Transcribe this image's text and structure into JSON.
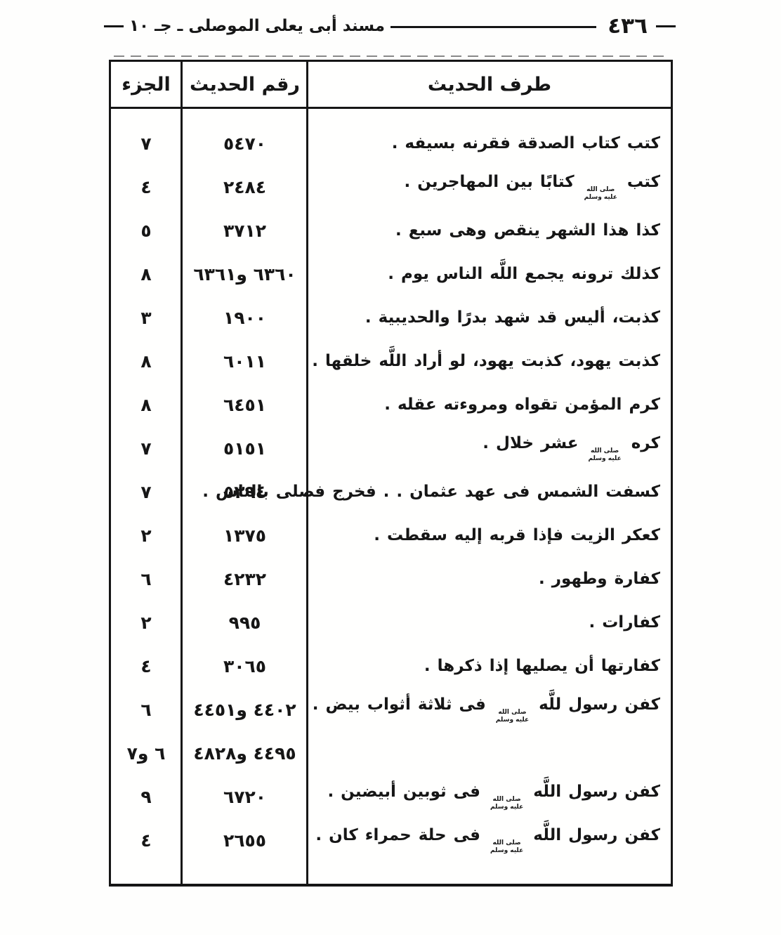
{
  "page_header": {
    "book_title": "مسند أبى يعلى الموصلى ـ جـ ١٠",
    "page_number": "٤٣٦"
  },
  "table": {
    "columns": {
      "text": "طرف الحديث",
      "number": "رقم الحديث",
      "part": "الجزء"
    },
    "rows": [
      {
        "text": "كتب كتاب الصدقة فقرنه بسيفه .",
        "number": "٥٤٧٠",
        "part": "٧"
      },
      {
        "text": "كتب ﷺ كتابًا بين المهاجرين .",
        "number": "٢٤٨٤",
        "part": "٤"
      },
      {
        "text": "كذا هذا الشهر ينقص وهى سبع .",
        "number": "٣٧١٢",
        "part": "٥"
      },
      {
        "text": "كذلك ترونه يجمع اللَّه الناس يوم .",
        "number": "٦٣٦٠ و٦٣٦١",
        "part": "٨"
      },
      {
        "text": "كذبت، أليس قد شهد بدرًا والحديبية .",
        "number": "١٩٠٠",
        "part": "٣"
      },
      {
        "text": "كذبت يهود، كذبت يهود، لو أراد اللَّه خلقها .",
        "number": "٦٠١١",
        "part": "٨"
      },
      {
        "text": "كرم المؤمن تقواه ومروءته عقله .",
        "number": "٦٤٥١",
        "part": "٨"
      },
      {
        "text": "كره ﷺ عشر خلال .",
        "number": "٥١٥١",
        "part": "٧"
      },
      {
        "text": "كسفت الشمس فى عهد عثمان . . فخرج فصلى بالناس .",
        "number": "٥٣٩٤",
        "part": "٧"
      },
      {
        "text": "كعكر الزيت فإذا قربه إليه سقطت .",
        "number": "١٣٧٥",
        "part": "٢"
      },
      {
        "text": "كفارة وطهور .",
        "number": "٤٢٣٢",
        "part": "٦"
      },
      {
        "text": "كفارات .",
        "number": "٩٩٥",
        "part": "٢"
      },
      {
        "text": "كفارتها أن يصليها إذا ذكرها .",
        "number": "٣٠٦٥",
        "part": "٤"
      },
      {
        "text": "كفن رسول للَّه ﷺ فى ثلاثة أثواب بيض .",
        "number": "٤٤٠٢ و٤٤٥١",
        "part": "٦"
      },
      {
        "text": "",
        "number": "٤٤٩٥ و٤٨٢٨",
        "part": "٦ و٧"
      },
      {
        "text": "كفن رسول اللَّه ﷺ فى ثوبين أبيضين .",
        "number": "٦٧٢٠",
        "part": "٩"
      },
      {
        "text": "كفن رسول اللَّه ﷺ فى حلة حمراء كان .",
        "number": "٢٦٥٥",
        "part": "٤"
      }
    ]
  },
  "honorific_ligature": {
    "line1": "صلى الله",
    "line2": "عليه وسلم"
  },
  "colors": {
    "ink": "#161616",
    "paper": "#fefefd"
  }
}
